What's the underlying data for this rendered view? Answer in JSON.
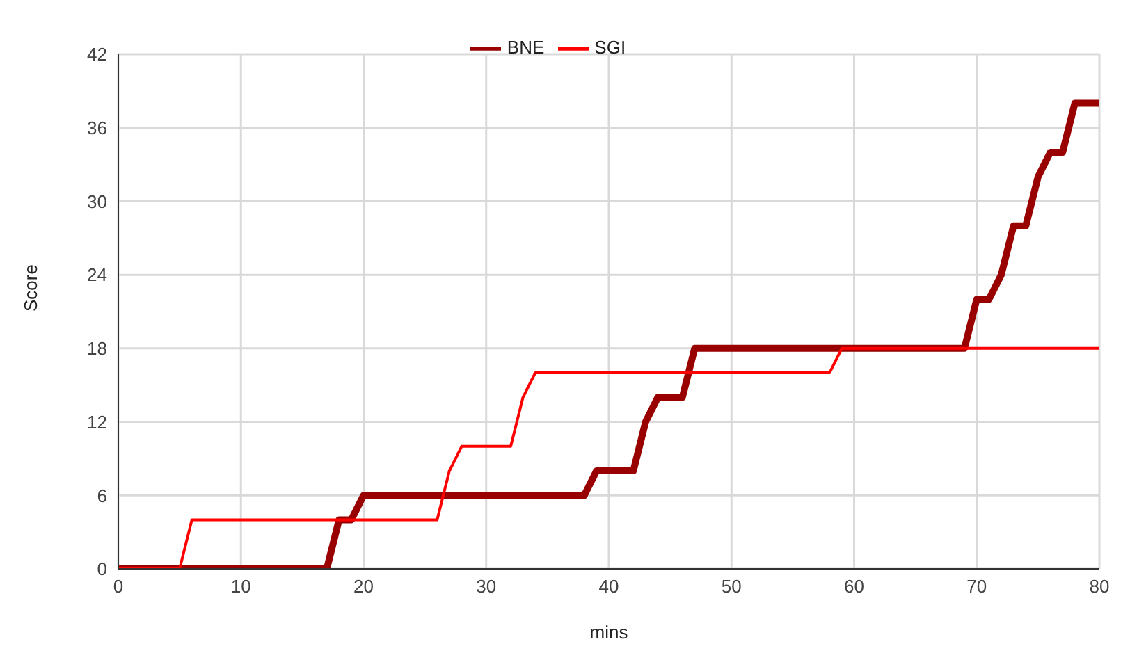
{
  "chart_data": {
    "type": "line",
    "xlabel": "mins",
    "ylabel": "Score",
    "xlim": [
      0,
      80
    ],
    "xticks": [
      0,
      10,
      20,
      30,
      40,
      50,
      60,
      70,
      80
    ],
    "ylim": [
      0,
      42
    ],
    "yticks": [
      0,
      6,
      12,
      18,
      24,
      30,
      36,
      42
    ],
    "grid": true,
    "legend": "top",
    "marker": "none",
    "line_style": "solid",
    "series": [
      {
        "name": "BNE",
        "color": "#990000",
        "x": [
          0,
          17,
          18,
          19,
          20,
          38,
          39,
          42,
          43,
          44,
          46,
          47,
          69,
          70,
          71,
          72,
          73,
          74,
          75,
          76,
          77,
          78,
          80
        ],
        "values": [
          0,
          0,
          4,
          4,
          6,
          6,
          8,
          8,
          12,
          14,
          14,
          18,
          18,
          22,
          22,
          24,
          28,
          28,
          32,
          34,
          34,
          38,
          38
        ]
      },
      {
        "name": "SGI",
        "color": "#ff0000",
        "x": [
          0,
          5,
          6,
          26,
          27,
          28,
          32,
          33,
          34,
          58,
          59,
          80
        ],
        "values": [
          0,
          0,
          4,
          4,
          8,
          10,
          10,
          14,
          16,
          16,
          18,
          18
        ]
      }
    ]
  }
}
